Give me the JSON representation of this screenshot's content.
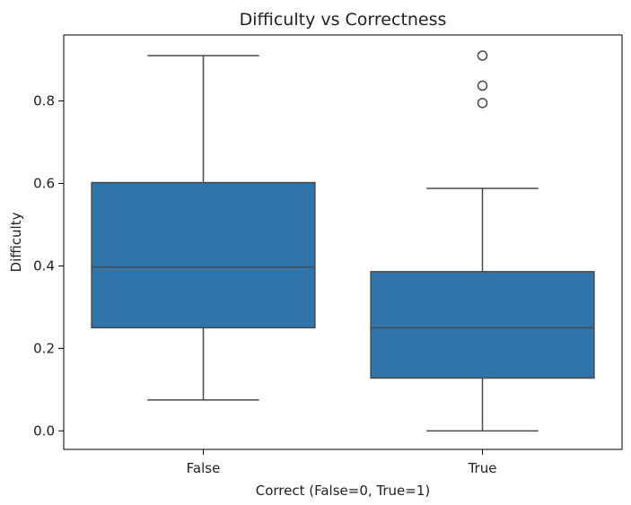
{
  "chart_data": {
    "type": "box",
    "title": "Difficulty vs Correctness",
    "xlabel": "Correct (False=0, True=1)",
    "ylabel": "Difficulty",
    "ylim": [
      -0.045,
      0.96
    ],
    "yticks": [
      0.0,
      0.2,
      0.4,
      0.6,
      0.8
    ],
    "ytick_labels": [
      "0.0",
      "0.2",
      "0.4",
      "0.6",
      "0.8"
    ],
    "categories": [
      "False",
      "True"
    ],
    "grid": false,
    "colors": {
      "box_fill": "#2f74ab",
      "line": "#4a4a4a",
      "axis": "#000000"
    },
    "boxes": [
      {
        "category": "False",
        "whisker_low": 0.075,
        "q1": 0.25,
        "median": 0.397,
        "q3": 0.602,
        "whisker_high": 0.91,
        "outliers": []
      },
      {
        "category": "True",
        "whisker_low": 0.0,
        "q1": 0.128,
        "median": 0.25,
        "q3": 0.386,
        "whisker_high": 0.588,
        "outliers": [
          0.91,
          0.837,
          0.795
        ]
      }
    ]
  }
}
